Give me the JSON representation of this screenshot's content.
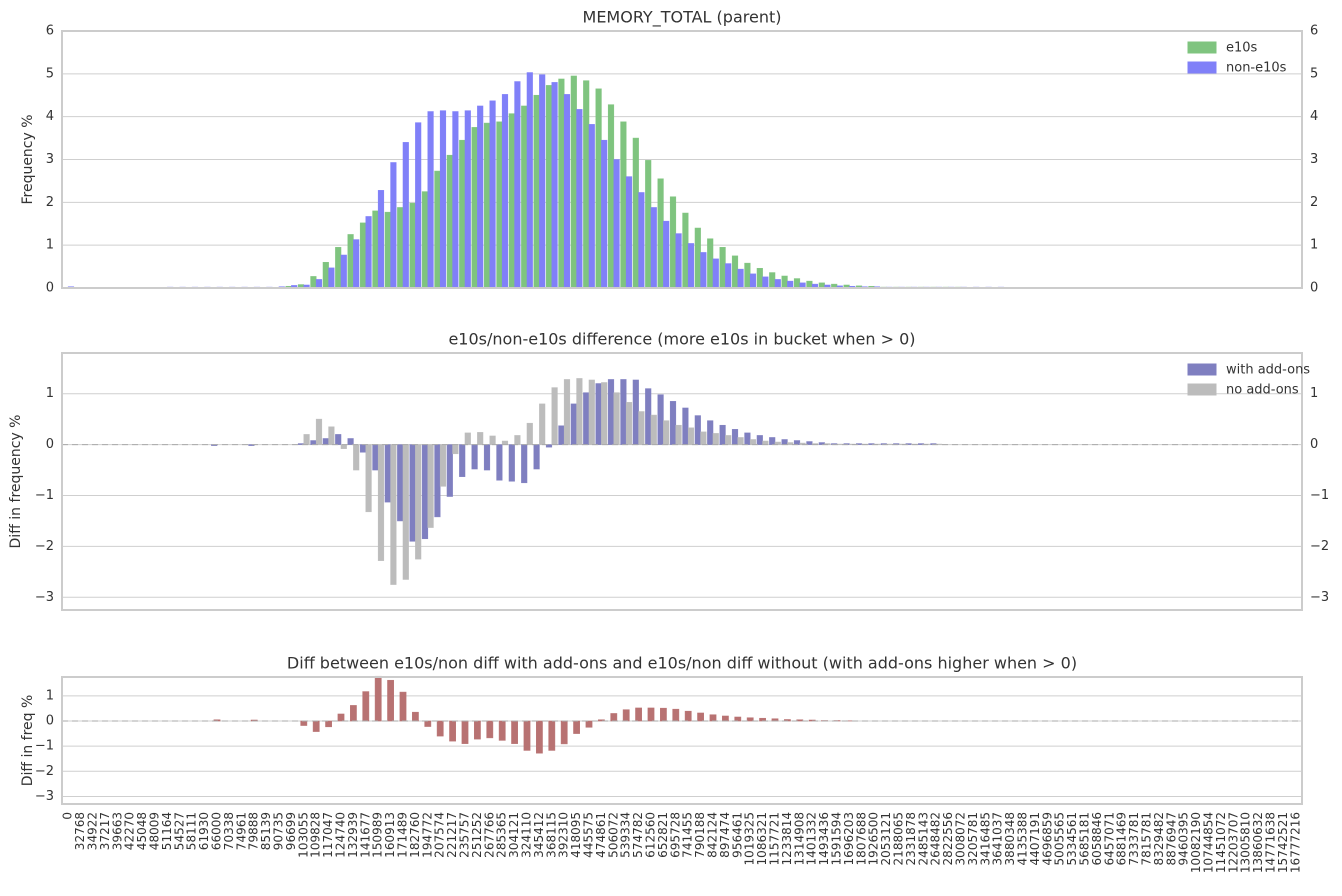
{
  "chart_data": [
    {
      "type": "bar",
      "title": "MEMORY_TOTAL (parent)",
      "y_label": "Frequency %",
      "ylim": [
        0,
        6
      ],
      "yticks": [
        0,
        1,
        2,
        3,
        4,
        5,
        6
      ],
      "grid": true,
      "mirror_yticks": true,
      "legend": "upper right",
      "series": [
        {
          "name": "e10s",
          "color": "#7fc47f",
          "values": [
            0,
            0,
            0,
            0,
            0,
            0,
            0,
            0,
            0,
            0,
            0,
            0,
            0,
            0,
            0,
            0,
            0,
            0.01,
            0.04,
            0.08,
            0.27,
            0.6,
            0.95,
            1.25,
            1.52,
            1.8,
            1.77,
            1.88,
            1.98,
            2.25,
            2.73,
            3.1,
            3.45,
            3.75,
            3.85,
            3.88,
            4.07,
            4.25,
            4.5,
            4.73,
            4.88,
            4.95,
            4.84,
            4.65,
            4.28,
            3.88,
            3.5,
            2.98,
            2.55,
            2.13,
            1.75,
            1.4,
            1.15,
            0.95,
            0.75,
            0.58,
            0.46,
            0.36,
            0.28,
            0.22,
            0.16,
            0.12,
            0.09,
            0.07,
            0.05,
            0.04,
            0.02,
            0.02,
            0.02,
            0.02,
            0.02,
            0.02,
            0.02,
            0,
            0,
            0,
            0,
            0,
            0,
            0,
            0,
            0,
            0,
            0,
            0,
            0,
            0,
            0,
            0,
            0,
            0,
            0,
            0,
            0,
            0,
            0,
            0,
            0,
            0,
            0
          ]
        },
        {
          "name": "non-e10s",
          "color": "#8080f8",
          "values": [
            0.03,
            0,
            0,
            0,
            0,
            0,
            0,
            0,
            0.02,
            0.02,
            0.02,
            0.02,
            0.02,
            0.02,
            0.02,
            0.02,
            0.02,
            0.03,
            0.06,
            0.07,
            0.2,
            0.47,
            0.77,
            1.13,
            1.67,
            2.28,
            2.93,
            3.4,
            3.86,
            4.12,
            4.14,
            4.12,
            4.14,
            4.25,
            4.37,
            4.52,
            4.82,
            5.03,
            4.98,
            4.8,
            4.52,
            4.17,
            3.82,
            3.45,
            3.0,
            2.6,
            2.23,
            1.88,
            1.56,
            1.27,
            1.04,
            0.83,
            0.68,
            0.57,
            0.44,
            0.33,
            0.26,
            0.2,
            0.16,
            0.12,
            0.09,
            0.07,
            0.05,
            0.04,
            0.03,
            0.03,
            0.02,
            0.02,
            0.02,
            0.02,
            0.02,
            0.02,
            0.02,
            0.02,
            0.02,
            0.02,
            0,
            0,
            0,
            0,
            0,
            0,
            0,
            0,
            0,
            0,
            0,
            0,
            0,
            0,
            0,
            0,
            0,
            0,
            0,
            0,
            0,
            0,
            0,
            0
          ]
        }
      ]
    },
    {
      "type": "bar",
      "title": "e10s/non-e10s difference (more e10s in bucket when > 0)",
      "y_label": "Diff in frequency %",
      "ylim": [
        -3.25,
        1.8
      ],
      "yticks": [
        {
          "value": -3,
          "label": "−3"
        },
        {
          "value": -2,
          "label": "−2"
        },
        {
          "value": -1,
          "label": "−1"
        },
        0,
        1
      ],
      "grid": true,
      "mirror_yticks": true,
      "zero_line": true,
      "legend": "upper right",
      "series": [
        {
          "name": "with add-ons",
          "color": "#7f7fc0",
          "values": [
            0,
            0,
            0,
            0,
            0,
            0,
            0,
            0,
            0,
            0,
            0,
            0,
            -0.02,
            0,
            0,
            -0.02,
            0,
            0,
            0,
            0.02,
            0.08,
            0.12,
            0.2,
            0.12,
            -0.15,
            -0.5,
            -1.13,
            -1.5,
            -1.9,
            -1.85,
            -1.42,
            -1.02,
            -0.63,
            -0.48,
            -0.5,
            -0.7,
            -0.72,
            -0.75,
            -0.48,
            -0.05,
            0.37,
            0.8,
            1.02,
            1.2,
            1.28,
            1.28,
            1.27,
            1.1,
            0.98,
            0.85,
            0.72,
            0.57,
            0.47,
            0.38,
            0.3,
            0.23,
            0.18,
            0.14,
            0.1,
            0.08,
            0.06,
            0.04,
            0.02,
            0.02,
            0.02,
            0.02,
            0.02,
            0.02,
            0.02,
            0.02,
            0.02,
            0,
            0,
            0,
            0,
            0,
            0,
            0,
            0,
            0,
            0,
            0,
            0,
            0,
            0,
            0,
            0,
            0,
            0,
            0,
            0,
            0,
            0,
            0,
            0,
            0,
            0,
            0,
            0,
            0
          ]
        },
        {
          "name": "no add-ons",
          "color": "#bcbcbc",
          "values": [
            0,
            0,
            0,
            0,
            0,
            0,
            0,
            0,
            0,
            0,
            0,
            0,
            0,
            0,
            0,
            0,
            0,
            0,
            0,
            0.2,
            0.5,
            0.35,
            -0.08,
            -0.5,
            -1.32,
            -2.28,
            -2.75,
            -2.65,
            -2.25,
            -1.63,
            -0.82,
            -0.18,
            0.23,
            0.24,
            0.17,
            0.07,
            0.18,
            0.42,
            0.8,
            1.12,
            1.28,
            1.3,
            1.27,
            1.22,
            1.02,
            0.83,
            0.65,
            0.58,
            0.47,
            0.38,
            0.33,
            0.25,
            0.22,
            0.18,
            0.14,
            0.1,
            0.07,
            0.05,
            0.04,
            0.03,
            0.02,
            0.02,
            0.01,
            0.01,
            0.01,
            0.01,
            0.01,
            0.01,
            0.01,
            0.01,
            0.01,
            0,
            0,
            0,
            0,
            0,
            0,
            0,
            0,
            0,
            0,
            0,
            0,
            0,
            0,
            0,
            0,
            0,
            0,
            0,
            0,
            0,
            0,
            0,
            0,
            0,
            0,
            0,
            0,
            0
          ]
        }
      ]
    },
    {
      "type": "bar",
      "title": "Diff between e10s/non diff with add-ons and e10s/non diff without (with add-ons higher when > 0)",
      "y_label": "Diff in freq %",
      "ylim": [
        -3.3,
        1.75
      ],
      "yticks": [
        {
          "value": -3,
          "label": "−3"
        },
        {
          "value": -2,
          "label": "−2"
        },
        {
          "value": -1,
          "label": "−1"
        },
        0,
        1
      ],
      "grid": true,
      "zero_line": true,
      "categories": [
        "0",
        "32768",
        "34922",
        "37217",
        "39663",
        "42270",
        "45048",
        "48009",
        "51164",
        "54527",
        "58111",
        "61930",
        "66000",
        "70338",
        "74961",
        "79888",
        "85139",
        "90735",
        "96699",
        "103055",
        "109828",
        "117047",
        "124740",
        "132939",
        "141677",
        "150989",
        "160913",
        "171489",
        "182760",
        "194772",
        "207574",
        "221217",
        "235757",
        "251252",
        "267766",
        "285365",
        "304121",
        "324110",
        "345412",
        "368115",
        "392310",
        "418095",
        "445575",
        "474861",
        "506072",
        "539334",
        "574782",
        "612560",
        "652821",
        "695728",
        "741455",
        "790188",
        "842124",
        "897474",
        "956461",
        "1019325",
        "1086321",
        "1157721",
        "1233814",
        "1314908",
        "1401332",
        "1493436",
        "1591594",
        "1696203",
        "1807688",
        "1926500",
        "2053121",
        "2188065",
        "2331878",
        "2485143",
        "2648482",
        "2822556",
        "3008072",
        "3205781",
        "3416485",
        "3641037",
        "3880348",
        "4135388",
        "4407191",
        "4696859",
        "5005565",
        "5334561",
        "5685181",
        "6058846",
        "6457071",
        "6881469",
        "7333781",
        "7815781",
        "8329482",
        "8876947",
        "9460395",
        "10082190",
        "10744854",
        "11451072",
        "12203707",
        "13005810",
        "13860632",
        "14771638",
        "15742521",
        "16777216"
      ],
      "series": [
        {
          "color": "#b87272",
          "values": [
            0,
            0,
            0,
            0,
            0,
            0,
            0,
            0,
            0,
            0,
            0,
            0,
            0.05,
            0,
            0,
            0.04,
            0,
            0,
            0,
            -0.18,
            -0.42,
            -0.23,
            0.28,
            0.62,
            1.17,
            1.78,
            1.62,
            1.15,
            0.35,
            -0.22,
            -0.6,
            -0.8,
            -0.9,
            -0.72,
            -0.67,
            -0.77,
            -0.9,
            -1.17,
            -1.28,
            -1.17,
            -0.91,
            -0.5,
            -0.25,
            0.05,
            0.3,
            0.45,
            0.52,
            0.52,
            0.51,
            0.47,
            0.39,
            0.32,
            0.25,
            0.2,
            0.16,
            0.13,
            0.11,
            0.09,
            0.06,
            0.05,
            0.04,
            0.02,
            0.02,
            0.01,
            0,
            0,
            0,
            0,
            0,
            0,
            0,
            0,
            0,
            0,
            0,
            0,
            0,
            0,
            0,
            0,
            0,
            0,
            0,
            0,
            0,
            0,
            0,
            0,
            0,
            0,
            0,
            0,
            0,
            0,
            0,
            0,
            0,
            0,
            0,
            0
          ]
        }
      ]
    }
  ]
}
